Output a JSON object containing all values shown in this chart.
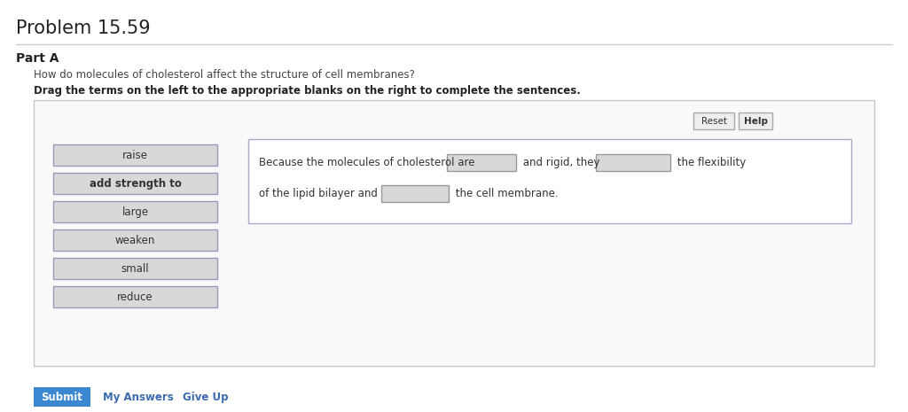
{
  "title": "Problem 15.59",
  "part_label": "Part A",
  "question": "How do molecules of cholesterol affect the structure of cell membranes?",
  "instruction": "Drag the terms on the left to the appropriate blanks on the right to complete the sentences.",
  "drag_terms": [
    "raise",
    "add strength to",
    "large",
    "weaken",
    "small",
    "reduce"
  ],
  "sentence_line1_pre": "Because the molecules of cholesterol are",
  "sentence_line1_mid": " and rigid, they",
  "sentence_line1_post": " the flexibility",
  "sentence_line2_pre": "of the lipid bilayer and",
  "sentence_line2_post": " the cell membrane.",
  "btn_reset": "Reset",
  "btn_help": "Help",
  "btn_submit": "Submit",
  "btn_my_answers": "My Answers",
  "btn_give_up": "Give Up",
  "bg_color": "#ffffff",
  "panel_bg": "#ffffff",
  "panel_border": "#cccccc",
  "term_bg": "#d8d8d8",
  "term_border": "#9999bb",
  "blank_bg": "#d8d8d8",
  "blank_border": "#999999",
  "submit_bg": "#3b87d0",
  "submit_fg": "#ffffff",
  "title_fontsize": 15,
  "part_fontsize": 10,
  "question_fontsize": 8.5,
  "instruction_fontsize": 8.5,
  "term_fontsize": 8.5,
  "sentence_fontsize": 8.5,
  "btn_fontsize": 8.5
}
